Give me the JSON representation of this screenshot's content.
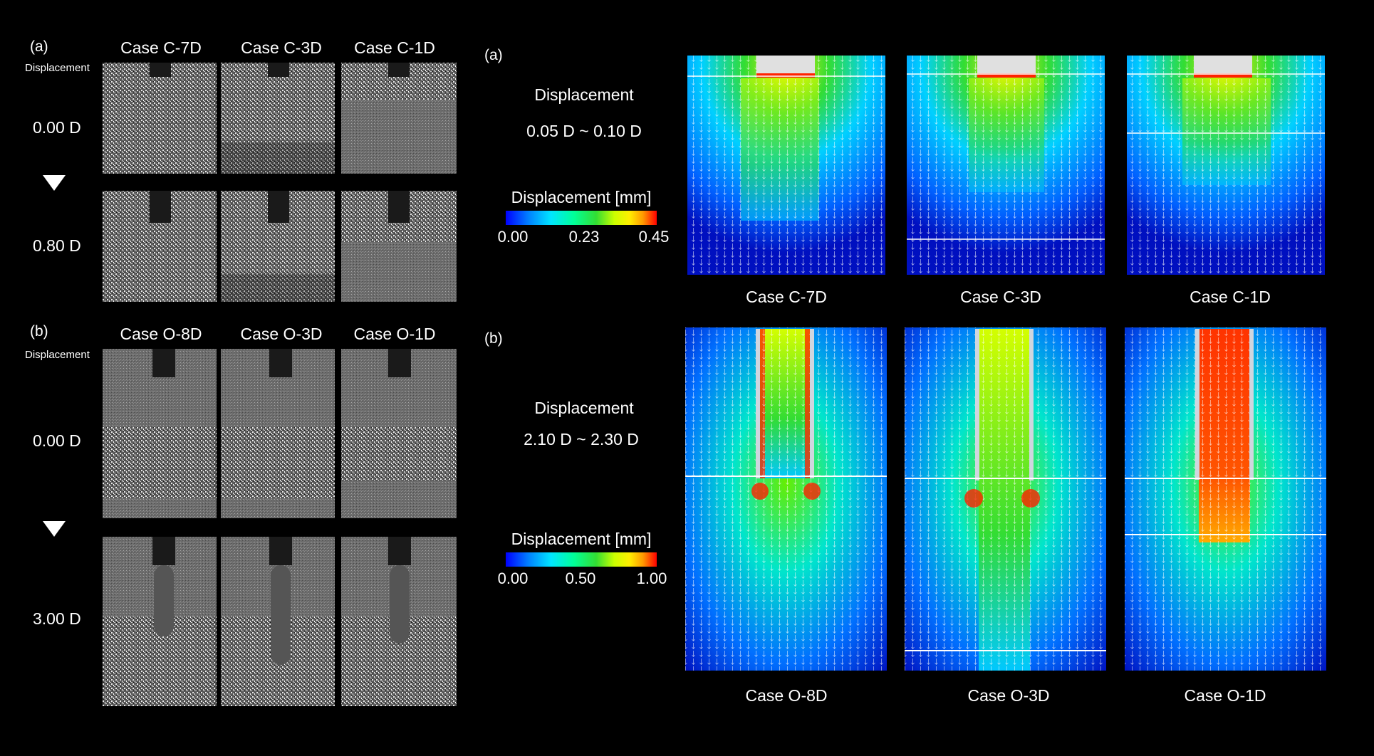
{
  "left": {
    "a": {
      "tag": "(a)",
      "axis_label": "Displacement",
      "cases": [
        "Case C-7D",
        "Case C-3D",
        "Case C-1D"
      ],
      "rows": [
        "0.00 D",
        "0.80 D"
      ]
    },
    "b": {
      "tag": "(b)",
      "axis_label": "Displacement",
      "cases": [
        "Case O-8D",
        "Case O-3D",
        "Case O-1D"
      ],
      "rows": [
        "0.00 D",
        "3.00 D"
      ]
    }
  },
  "right": {
    "a": {
      "tag": "(a)",
      "title": "Displacement",
      "range": "0.05 D ~ 0.10 D",
      "colorbar_label": "Displacement [mm]",
      "ticks": [
        "0.00",
        "0.23",
        "0.45"
      ],
      "cases": [
        "Case C-7D",
        "Case C-3D",
        "Case C-1D"
      ]
    },
    "b": {
      "tag": "(b)",
      "title": "Displacement",
      "range": "2.10 D ~ 2.30 D",
      "colorbar_label": "Displacement [mm]",
      "ticks": [
        "0.00",
        "0.50",
        "1.00"
      ],
      "cases": [
        "Case O-8D",
        "Case O-3D",
        "Case O-1D"
      ]
    }
  },
  "colors": {
    "colormap": [
      "#0000ff",
      "#0080ff",
      "#00e5ff",
      "#00ff99",
      "#33dd33",
      "#ccff00",
      "#ffee00",
      "#ff9900",
      "#ff0000"
    ]
  }
}
